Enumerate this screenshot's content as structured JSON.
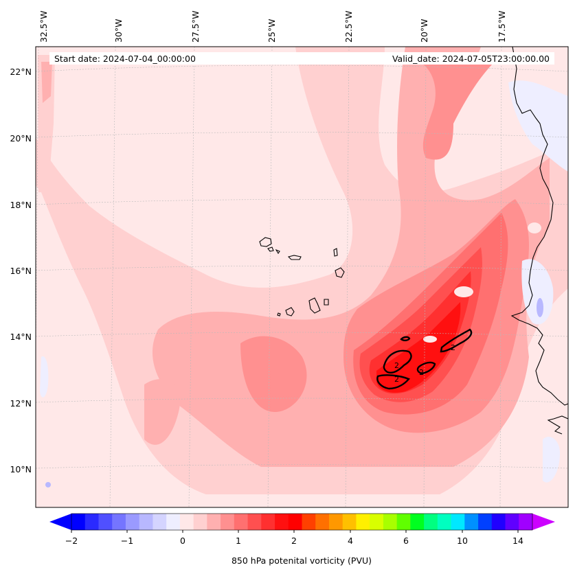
{
  "map": {
    "start_label": "Start date: 2024-07-04_00:00:00",
    "valid_label": "Valid_date: 2024-07-05T23:00:00.00",
    "lon_labels": [
      "32.5°W",
      "30°W",
      "27.5°W",
      "25°W",
      "22.5°W",
      "20°W",
      "17.5°W"
    ],
    "lat_labels": [
      "22°N",
      "20°N",
      "18°N",
      "16°N",
      "14°N",
      "12°N",
      "10°N"
    ],
    "contour_label": "2"
  },
  "colorbar": {
    "title": "850 hPa potenital vorticity (PVU)",
    "tick_labels": [
      "−2",
      "−1",
      "0",
      "1",
      "2",
      "4",
      "6",
      "10",
      "14"
    ],
    "colors": [
      "#0000ff",
      "#2a2aff",
      "#5050ff",
      "#7575ff",
      "#9a9aff",
      "#b8b8ff",
      "#d4d4ff",
      "#eeeeff",
      "#ffe8e8",
      "#ffd0d0",
      "#ffb0b0",
      "#ff9090",
      "#ff7070",
      "#ff5050",
      "#ff3030",
      "#ff1010",
      "#ff0000",
      "#ff4000",
      "#ff7000",
      "#ff9800",
      "#ffc000",
      "#fff000",
      "#d8ff00",
      "#a8ff00",
      "#60ff00",
      "#00ff20",
      "#00ff80",
      "#00ffc0",
      "#00e8ff",
      "#0090ff",
      "#0040ff",
      "#2000ff",
      "#6000ff",
      "#a000ff"
    ],
    "extend_low_color": "#0000ff",
    "extend_high_color": "#cc00ff"
  },
  "colors": {
    "background_field": "#ffe8e8",
    "light_pink": "#ffd0d0",
    "medium_pink": "#ffb0b0",
    "salmon": "#ff9090",
    "red_light": "#ff7070",
    "red_mid": "#ff5050",
    "red_strong": "#ff3030",
    "red_core": "#ff1010",
    "pale_blue": "#eeeeff",
    "blue_spot": "#b8b8ff"
  }
}
